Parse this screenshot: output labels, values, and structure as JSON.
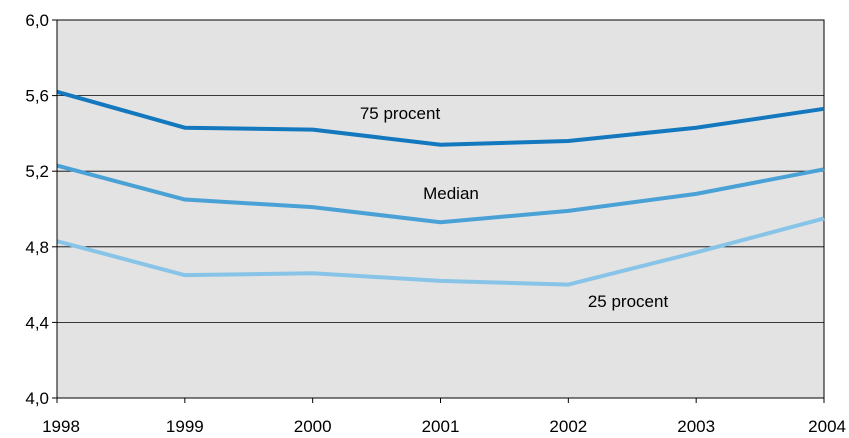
{
  "chart_data": {
    "type": "line",
    "x": [
      "1998",
      "1999",
      "2000",
      "2001",
      "2002",
      "2003",
      "2004"
    ],
    "ylim": [
      4.0,
      6.0
    ],
    "yticks": [
      {
        "value": 4.0,
        "label": "4,0"
      },
      {
        "value": 4.4,
        "label": "4,4"
      },
      {
        "value": 4.8,
        "label": "4,8"
      },
      {
        "value": 5.2,
        "label": "5,2"
      },
      {
        "value": 5.6,
        "label": "5,6"
      },
      {
        "value": 6.0,
        "label": "6,0"
      }
    ],
    "grid": true,
    "plot_background": "#e3e3e3",
    "series": [
      {
        "name": "75 procent",
        "color": "#1478be",
        "values": [
          5.62,
          5.43,
          5.42,
          5.34,
          5.36,
          5.43,
          5.53
        ]
      },
      {
        "name": "Median",
        "color": "#4aa1d6",
        "values": [
          5.23,
          5.05,
          5.01,
          4.93,
          4.99,
          5.08,
          5.21
        ]
      },
      {
        "name": "25 procent",
        "color": "#88c4e8",
        "values": [
          4.83,
          4.65,
          4.66,
          4.62,
          4.6,
          4.77,
          4.95
        ]
      }
    ]
  }
}
